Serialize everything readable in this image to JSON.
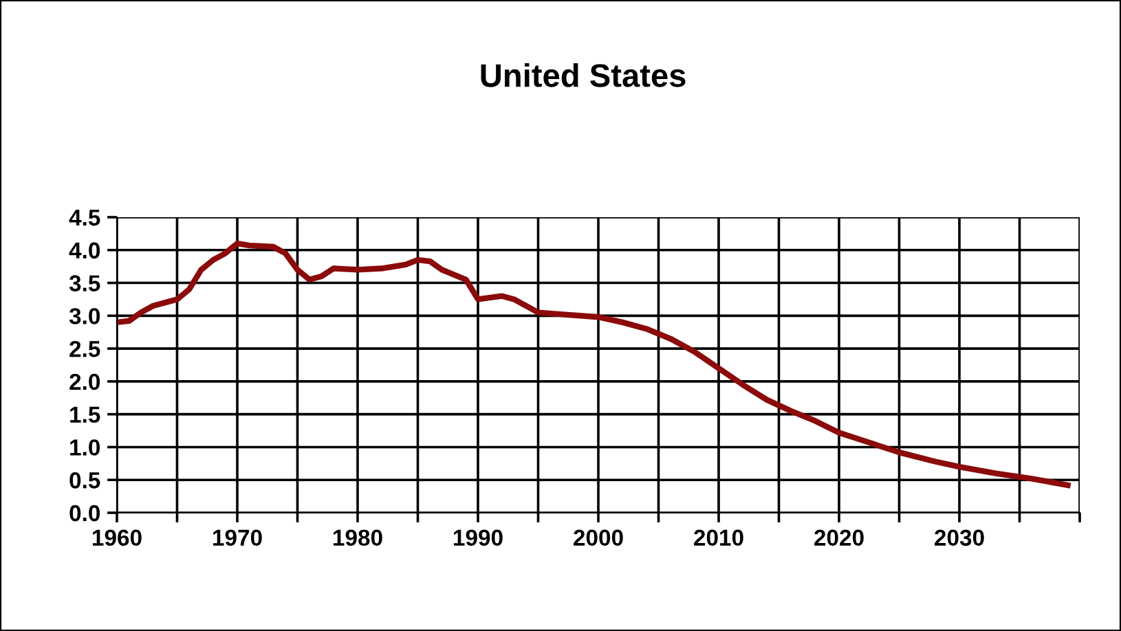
{
  "chart_data": {
    "type": "line",
    "title": "United States",
    "x": [
      1960,
      1961,
      1962,
      1963,
      1965,
      1966,
      1967,
      1968,
      1969,
      1970,
      1971,
      1973,
      1974,
      1975,
      1976,
      1977,
      1978,
      1980,
      1982,
      1984,
      1985,
      1986,
      1987,
      1989,
      1990,
      1992,
      1993,
      1995,
      1997,
      2000,
      2002,
      2004,
      2006,
      2008,
      2010,
      2012,
      2014,
      2016,
      2018,
      2020,
      2022,
      2025,
      2028,
      2030,
      2033,
      2036,
      2039
    ],
    "series": [
      {
        "color": "#8b0a0a",
        "values": [
          2.9,
          2.92,
          3.05,
          3.15,
          3.25,
          3.4,
          3.7,
          3.85,
          3.95,
          4.1,
          4.07,
          4.05,
          3.95,
          3.7,
          3.55,
          3.6,
          3.72,
          3.7,
          3.72,
          3.78,
          3.85,
          3.83,
          3.7,
          3.55,
          3.25,
          3.3,
          3.25,
          3.05,
          3.02,
          2.98,
          2.9,
          2.8,
          2.65,
          2.45,
          2.2,
          1.95,
          1.72,
          1.55,
          1.4,
          1.22,
          1.1,
          0.92,
          0.78,
          0.7,
          0.6,
          0.52,
          0.42
        ]
      }
    ],
    "xlim": [
      1960,
      2040
    ],
    "xticks": [
      1960,
      {
        "value": 1965,
        "label": null
      },
      1970,
      {
        "value": 1975,
        "label": null
      },
      1980,
      {
        "value": 1985,
        "label": null
      },
      1990,
      {
        "value": 1995,
        "label": null
      },
      2000,
      {
        "value": 2005,
        "label": null
      },
      2010,
      {
        "value": 2015,
        "label": null
      },
      2020,
      {
        "value": 2025,
        "label": null
      },
      2030,
      {
        "value": 2035,
        "label": null
      },
      {
        "value": 2040,
        "label": null
      }
    ],
    "ylim": [
      0,
      4.5
    ],
    "yticks": [
      {
        "value": 0,
        "label": "0.0"
      },
      {
        "value": 0.5,
        "label": "0.5"
      },
      {
        "value": 1,
        "label": "1.0"
      },
      {
        "value": 1.5,
        "label": "1.5"
      },
      {
        "value": 2,
        "label": "2.0"
      },
      {
        "value": 2.5,
        "label": "2.5"
      },
      {
        "value": 3,
        "label": "3.0"
      },
      {
        "value": 3.5,
        "label": "3.5"
      },
      {
        "value": 4,
        "label": "4.0"
      },
      {
        "value": 4.5,
        "label": "4.5"
      }
    ],
    "grid": true,
    "marker": "none",
    "line_style": "solid",
    "legend": false
  }
}
